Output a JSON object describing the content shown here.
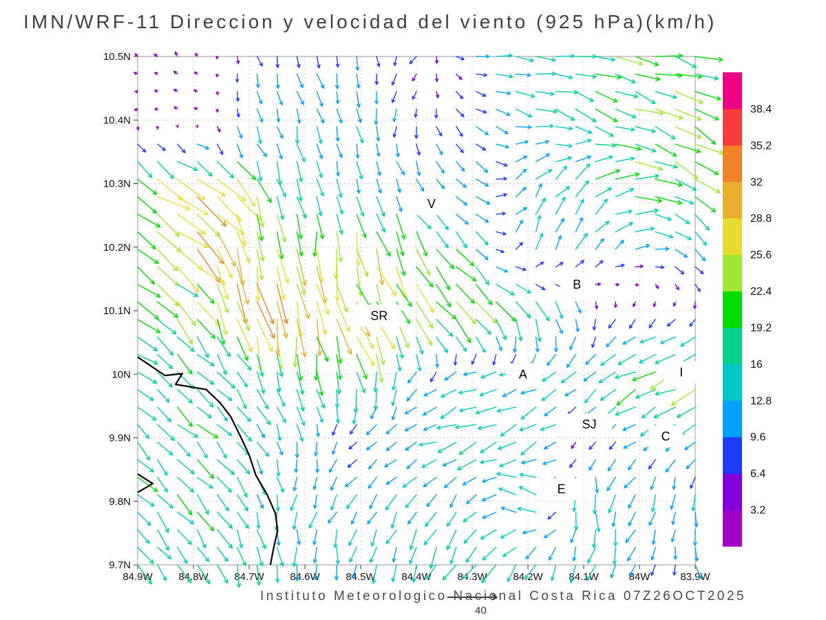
{
  "footer": {
    "text": "Instituto Meteorologico Nacional Costa Rica 07Z26OCT2025"
  },
  "chart_data": {
    "type": "quiver",
    "title": "IMN/WRF-11 Direccion y velocidad del viento (925 hPa)(km/h)",
    "model": "IMN/WRF-11",
    "variable": "Direccion y velocidad del viento",
    "level": "925 hPa",
    "units": "km/h",
    "valid_time": "07Z26OCT2025",
    "source": "Instituto Meteorologico Nacional Costa Rica",
    "lon_range": [
      84.9,
      83.9
    ],
    "lat_range": [
      9.7,
      10.5
    ],
    "grid": true,
    "x_tick_values": [
      84.9,
      84.8,
      84.7,
      84.6,
      84.5,
      84.4,
      84.3,
      84.2,
      84.1,
      84.0,
      83.9
    ],
    "x_tick_labels": [
      "84.9W",
      "84.8W",
      "84.7W",
      "84.6W",
      "84.5W",
      "84.4W",
      "84.3W",
      "84.2W",
      "84.1W",
      "84W",
      "83.9W"
    ],
    "y_tick_values": [
      10.5,
      10.4,
      10.3,
      10.2,
      10.1,
      10.0,
      9.9,
      9.8,
      9.7
    ],
    "y_tick_labels": [
      "10.5N",
      "10.4N",
      "10.3N",
      "10.2N",
      "10.1N",
      "10N",
      "9.9N",
      "9.8N",
      "9.7N"
    ],
    "reference_vector": {
      "value": 40,
      "label": "40"
    },
    "colorbar": {
      "levels": [
        3.2,
        6.4,
        9.6,
        12.8,
        16,
        19.2,
        22.4,
        25.6,
        28.8,
        32,
        35.2,
        38.4
      ],
      "labels": [
        "3.2",
        "6.4",
        "9.6",
        "12.8",
        "16",
        "19.2",
        "22.4",
        "25.6",
        "28.8",
        "32",
        "35.2",
        "38.4"
      ],
      "colors": [
        "#a000c8",
        "#8200dc",
        "#1e3cff",
        "#00a0ff",
        "#00c8c8",
        "#00d28c",
        "#00dc00",
        "#a0e632",
        "#e6dc32",
        "#e6af2d",
        "#f08228",
        "#fa3c3c",
        "#f00082"
      ]
    },
    "stations": [
      {
        "label": "V",
        "lon": 84.373,
        "lat": 10.268
      },
      {
        "label": "B",
        "lon": 84.112,
        "lat": 10.141
      },
      {
        "label": "SR",
        "lon": 84.467,
        "lat": 10.092
      },
      {
        "label": "A",
        "lon": 84.209,
        "lat": 10.0
      },
      {
        "label": "I",
        "lon": 83.925,
        "lat": 10.003
      },
      {
        "label": "SJ",
        "lon": 84.09,
        "lat": 9.921
      },
      {
        "label": "C",
        "lon": 83.953,
        "lat": 9.902
      },
      {
        "label": "E",
        "lon": 84.14,
        "lat": 9.819
      }
    ],
    "coastline_paths": [
      [
        [
          84.9,
          10.027
        ],
        [
          84.851,
          9.998
        ],
        [
          84.82,
          10.001
        ],
        [
          84.832,
          9.984
        ],
        [
          84.777,
          9.976
        ],
        [
          84.752,
          9.955
        ],
        [
          84.733,
          9.933
        ],
        [
          84.715,
          9.901
        ],
        [
          84.7,
          9.873
        ],
        [
          84.688,
          9.841
        ],
        [
          84.668,
          9.811
        ],
        [
          84.653,
          9.781
        ],
        [
          84.649,
          9.754
        ],
        [
          84.656,
          9.727
        ],
        [
          84.662,
          9.7
        ]
      ],
      [
        [
          84.9,
          9.843
        ],
        [
          84.873,
          9.828
        ],
        [
          84.9,
          9.814
        ]
      ]
    ],
    "wind_field": {
      "lons": [
        84.9,
        84.8,
        84.7,
        84.6,
        84.5,
        84.4,
        84.3,
        84.2,
        84.1,
        84.0,
        83.9
      ],
      "lats": [
        10.5,
        10.4,
        10.3,
        10.2,
        10.1,
        10.0,
        9.9,
        9.8,
        9.7
      ],
      "u": [
        [
          -3,
          -2,
          2,
          3,
          2,
          -4,
          10,
          14,
          18,
          20,
          22
        ],
        [
          -2,
          -3,
          4,
          3,
          2,
          -2,
          8,
          14,
          16,
          18,
          20
        ],
        [
          20,
          26,
          10,
          4,
          4,
          6,
          10,
          8,
          14,
          22,
          16
        ],
        [
          18,
          22,
          6,
          2,
          8,
          12,
          10,
          4,
          6,
          12,
          10
        ],
        [
          16,
          14,
          8,
          4,
          10,
          16,
          18,
          10,
          2,
          -4,
          -2
        ],
        [
          12,
          12,
          8,
          4,
          6,
          -6,
          -12,
          -12,
          -10,
          -18,
          -22
        ],
        [
          12,
          12,
          8,
          2,
          -8,
          -10,
          -16,
          -14,
          -4,
          -8,
          -10
        ],
        [
          12,
          12,
          6,
          -4,
          -8,
          -6,
          -8,
          -18,
          2,
          -6,
          2
        ],
        [
          10,
          8,
          4,
          2,
          -2,
          -6,
          -10,
          -8,
          -4,
          -4,
          2
        ]
      ],
      "v": [
        [
          2,
          3,
          -8,
          -10,
          -10,
          -6,
          -2,
          -2,
          -3,
          -4,
          -6
        ],
        [
          -2,
          2,
          -10,
          -12,
          -12,
          -8,
          -6,
          -4,
          -6,
          -8,
          -10
        ],
        [
          -12,
          -16,
          -20,
          -14,
          -12,
          -10,
          -6,
          10,
          12,
          -2,
          -14
        ],
        [
          -14,
          -18,
          -30,
          -26,
          -26,
          -20,
          -10,
          12,
          14,
          2,
          -8
        ],
        [
          -12,
          -16,
          -28,
          -30,
          -24,
          -18,
          -16,
          -20,
          -10,
          -4,
          -4
        ],
        [
          -10,
          -12,
          -14,
          -18,
          -20,
          -10,
          -4,
          -4,
          -8,
          -10,
          -9
        ],
        [
          -12,
          -12,
          -12,
          -10,
          -6,
          -4,
          -6,
          -8,
          -4,
          -6,
          -8
        ],
        [
          -12,
          -14,
          -14,
          -12,
          -10,
          -12,
          -10,
          8,
          -16,
          -12,
          -12
        ],
        [
          -14,
          -14,
          -16,
          -14,
          -12,
          -14,
          -16,
          -14,
          -12,
          -10,
          -10
        ]
      ]
    }
  }
}
